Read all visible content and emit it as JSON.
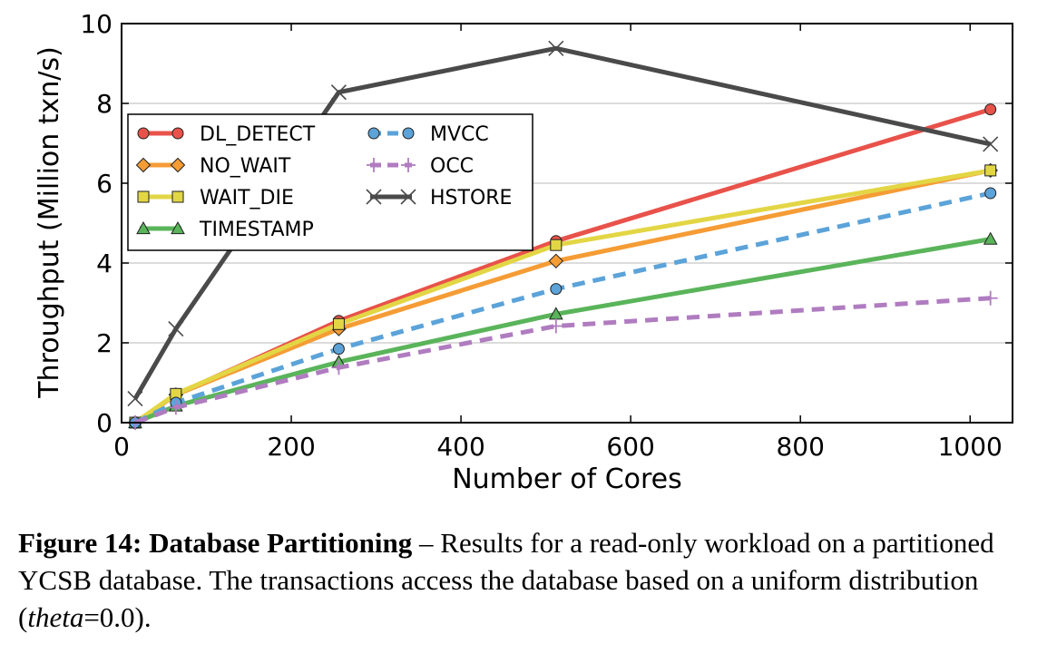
{
  "chart_data": {
    "type": "line",
    "xlabel": "Number of Cores",
    "ylabel": "Throughput (Million txn/s)",
    "xlim": [
      0,
      1050
    ],
    "ylim": [
      0,
      10
    ],
    "xticks": [
      "0",
      "200",
      "400",
      "600",
      "800",
      "1000"
    ],
    "yticks": [
      "0",
      "2",
      "4",
      "6",
      "8",
      "10"
    ],
    "x": [
      16,
      64,
      256,
      512,
      1024
    ],
    "grid": "horizontal",
    "legend_location": "upper-left",
    "series": [
      {
        "name": "DL_DETECT",
        "color": "#e8524a",
        "marker": "circle",
        "dashed": false,
        "values": [
          0.0,
          0.7,
          2.55,
          4.55,
          7.85
        ]
      },
      {
        "name": "NO_WAIT",
        "color": "#f59c35",
        "marker": "diamond",
        "dashed": false,
        "values": [
          0.0,
          0.7,
          2.35,
          4.05,
          6.32
        ]
      },
      {
        "name": "WAIT_DIE",
        "color": "#e3d645",
        "marker": "square",
        "dashed": false,
        "values": [
          0.0,
          0.72,
          2.47,
          4.45,
          6.32
        ]
      },
      {
        "name": "TIMESTAMP",
        "color": "#5ab45a",
        "marker": "triangle",
        "dashed": false,
        "values": [
          0.0,
          0.42,
          1.52,
          2.72,
          4.6
        ]
      },
      {
        "name": "MVCC",
        "color": "#5ba3d9",
        "marker": "circle",
        "dashed": true,
        "values": [
          0.0,
          0.5,
          1.85,
          3.35,
          5.75
        ]
      },
      {
        "name": "OCC",
        "color": "#b07cc0",
        "marker": "plus",
        "dashed": true,
        "values": [
          0.0,
          0.38,
          1.38,
          2.42,
          3.12
        ]
      },
      {
        "name": "HSTORE",
        "color": "#4a4a4a",
        "marker": "x",
        "dashed": false,
        "values": [
          0.6,
          2.35,
          8.28,
          9.38,
          6.98
        ]
      }
    ]
  },
  "caption": {
    "label": "Figure 14:",
    "title": "Database Partitioning",
    "text_1": " – Results for a read-only workload on a partitioned YCSB database. The transactions access the database based on a uniform distribution (",
    "theta": "theta",
    "text_2": "=0.0)."
  }
}
